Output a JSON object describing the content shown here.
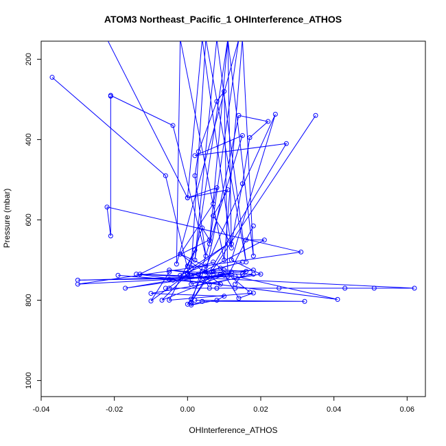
{
  "chart_data": {
    "type": "line",
    "title": "ATOM3 Northeast_Pacific_1 OHInterference_ATHOS",
    "xlabel": "OHInterference_ATHOS",
    "ylabel": "Pressure (mbar)",
    "xlim": [
      -0.04,
      0.065
    ],
    "ylim": [
      1040,
      155
    ],
    "y_reversed": true,
    "x_ticks": [
      -0.04,
      -0.02,
      0.0,
      0.02,
      0.04,
      0.06
    ],
    "x_tick_labels": [
      "-0.04",
      "-0.02",
      "0.00",
      "0.02",
      "0.04",
      "0.06"
    ],
    "y_ticks": [
      200,
      400,
      600,
      800,
      1000
    ],
    "y_tick_labels": [
      "200",
      "400",
      "600",
      "800",
      "1000"
    ],
    "series_color": "#0000ff",
    "series": [
      {
        "x": [
          -0.037,
          -0.006,
          0.001,
          0.012,
          -0.007,
          0.0,
          0.018,
          -0.017,
          -0.004,
          0.015,
          0.001,
          -0.013,
          0.006,
          0.004,
          0.0,
          0.006,
          -0.014,
          0.041,
          0.007
        ],
        "y": [
          245,
          490,
          760,
          730,
          800,
          735,
          725,
          770,
          750,
          705,
          740,
          735,
          650,
          620,
          733,
          745,
          735,
          798,
          728
        ]
      },
      {
        "x": [
          -0.021,
          -0.021,
          -0.022,
          0.031,
          -0.03,
          0.013,
          -0.03,
          0.005,
          0.062,
          0.043,
          0.051,
          0.025,
          -0.006,
          0.008,
          -0.005,
          0.008,
          0.013,
          0.006
        ],
        "y": [
          292,
          640,
          568,
          680,
          760,
          740,
          750,
          745,
          770,
          770,
          770,
          770,
          770,
          770,
          770,
          770,
          770,
          770
        ]
      },
      {
        "x": [
          -0.021,
          -0.004,
          0.005,
          0.002,
          0.003,
          0.008,
          0.01,
          0.011,
          0.018,
          0.016,
          0.021,
          0.003,
          -0.005,
          0.009,
          0.018,
          0.006,
          0.004,
          0.003
        ],
        "y": [
          290,
          365,
          690,
          490,
          430,
          305,
          280,
          740,
          615,
          650,
          650,
          735,
          725,
          735,
          735,
          760,
          750,
          735
        ]
      },
      {
        "x": [
          -0.002,
          0.007,
          0.008,
          0.0,
          0.011,
          0.007,
          0.012,
          0.015,
          0.017,
          0.022,
          0.014,
          0.005,
          0.007,
          0.004,
          0.01,
          0.016,
          0.015,
          0.013
        ],
        "y": [
          685,
          560,
          520,
          545,
          525,
          590,
          660,
          510,
          395,
          355,
          340,
          730,
          735,
          728,
          725,
          728,
          735,
          760
        ]
      },
      {
        "x": [
          0.035,
          0.001,
          0.027,
          0.002,
          0.015,
          0.001,
          -0.0,
          0.001,
          0.024,
          0.012,
          0.02,
          -0.01,
          0.01,
          0.008,
          0.001,
          0.004,
          0.032,
          0.002
        ],
        "y": [
          340,
          805,
          410,
          440,
          390,
          808,
          810,
          797,
          337,
          700,
          735,
          783,
          790,
          800,
          812,
          803,
          803,
          800
        ]
      },
      {
        "x": [
          -0.005,
          -0.01,
          0.011,
          -0.002,
          0.007,
          0.017,
          0.009,
          0.014,
          0.018,
          -0.005,
          0.002,
          0.0,
          0.005,
          -0.002,
          0.009,
          -0.019,
          -0.005,
          0.01
        ],
        "y": [
          730,
          802,
          660,
          738,
          705,
          780,
          720,
          795,
          782,
          800,
          675,
          715,
          715,
          685,
          760,
          738,
          748,
          738
        ]
      },
      {
        "x": [
          -0.022,
          0.0,
          0.004,
          0.012,
          0.011,
          0.006,
          0.014,
          -0.003,
          -0.002,
          0.01,
          0.015,
          0.018,
          0.011,
          0.002,
          0.008,
          0.016,
          0.005,
          0.001
        ],
        "y": [
          150,
          545,
          150,
          670,
          150,
          660,
          150,
          710,
          150,
          700,
          150,
          690,
          150,
          700,
          150,
          705,
          150,
          720
        ]
      }
    ]
  }
}
